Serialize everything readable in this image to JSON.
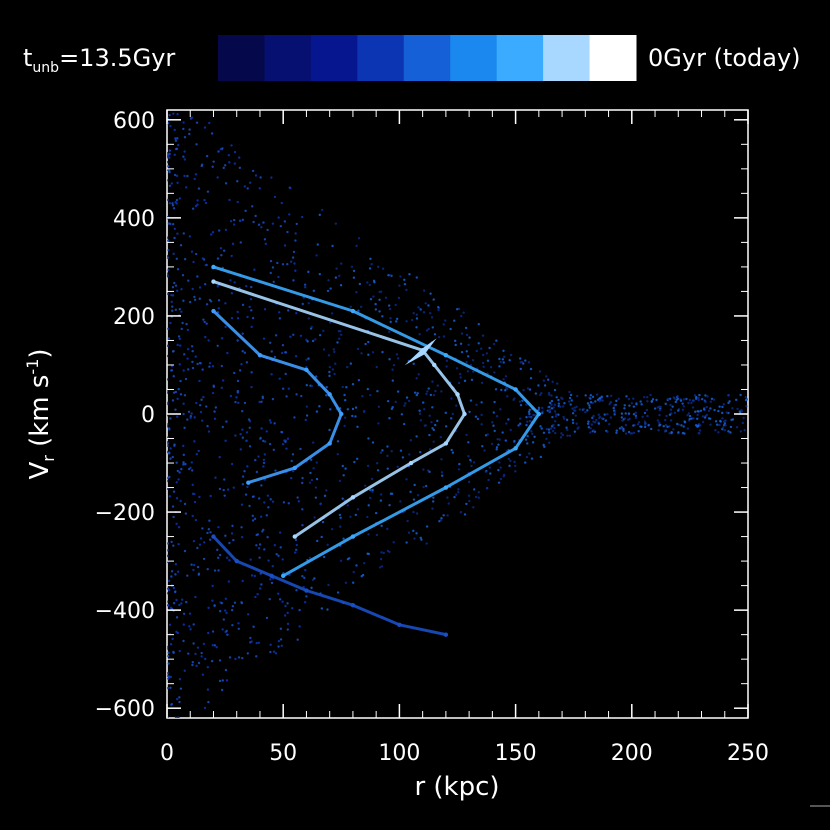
{
  "chart_data": {
    "type": "scatter",
    "xlabel": "r (kpc)",
    "ylabel": "V_r (km s^-1)",
    "xlim": [
      0,
      250
    ],
    "ylim": [
      -620,
      620
    ],
    "x_ticks": [
      "0",
      "50",
      "100",
      "150",
      "200",
      "250"
    ],
    "y_ticks": [
      "600",
      "400",
      "200",
      "0",
      "−200",
      "−400",
      "−600"
    ],
    "x_tick_values": [
      0,
      50,
      100,
      150,
      200,
      250
    ],
    "y_tick_values": [
      600,
      400,
      200,
      0,
      -200,
      -400,
      -600
    ],
    "grid": false,
    "colorbar": {
      "left_label_main": "t",
      "left_label_sub": "unb",
      "left_label_value": "=13.5Gyr",
      "right_label": "0Gyr (today)",
      "colors": [
        "#05084a",
        "#061070",
        "#05168f",
        "#0b35b3",
        "#1560d6",
        "#1a88ee",
        "#3aabff",
        "#a8d8ff",
        "#ffffff"
      ]
    },
    "series": [
      {
        "color": "#1a4fc4",
        "points": [
          [
            20,
            -250
          ],
          [
            30,
            -300
          ],
          [
            45,
            -330
          ],
          [
            60,
            -360
          ],
          [
            80,
            -390
          ],
          [
            100,
            -430
          ],
          [
            120,
            -450
          ]
        ]
      },
      {
        "color": "#3f9fff",
        "points": [
          [
            20,
            210
          ],
          [
            40,
            120
          ],
          [
            60,
            90
          ],
          [
            70,
            40
          ],
          [
            75,
            0
          ],
          [
            70,
            -60
          ],
          [
            55,
            -110
          ],
          [
            35,
            -140
          ]
        ]
      },
      {
        "color": "#a8d8ff",
        "points": [
          [
            20,
            270
          ],
          [
            110,
            130
          ],
          [
            115,
            100
          ],
          [
            125,
            40
          ],
          [
            128,
            0
          ],
          [
            120,
            -60
          ],
          [
            105,
            -100
          ],
          [
            80,
            -170
          ],
          [
            55,
            -250
          ]
        ]
      },
      {
        "color": "#3aabff",
        "points": [
          [
            20,
            300
          ],
          [
            80,
            210
          ],
          [
            120,
            120
          ],
          [
            150,
            50
          ],
          [
            160,
            0
          ],
          [
            150,
            -70
          ],
          [
            120,
            -150
          ],
          [
            80,
            -250
          ],
          [
            50,
            -330
          ]
        ]
      }
    ]
  }
}
